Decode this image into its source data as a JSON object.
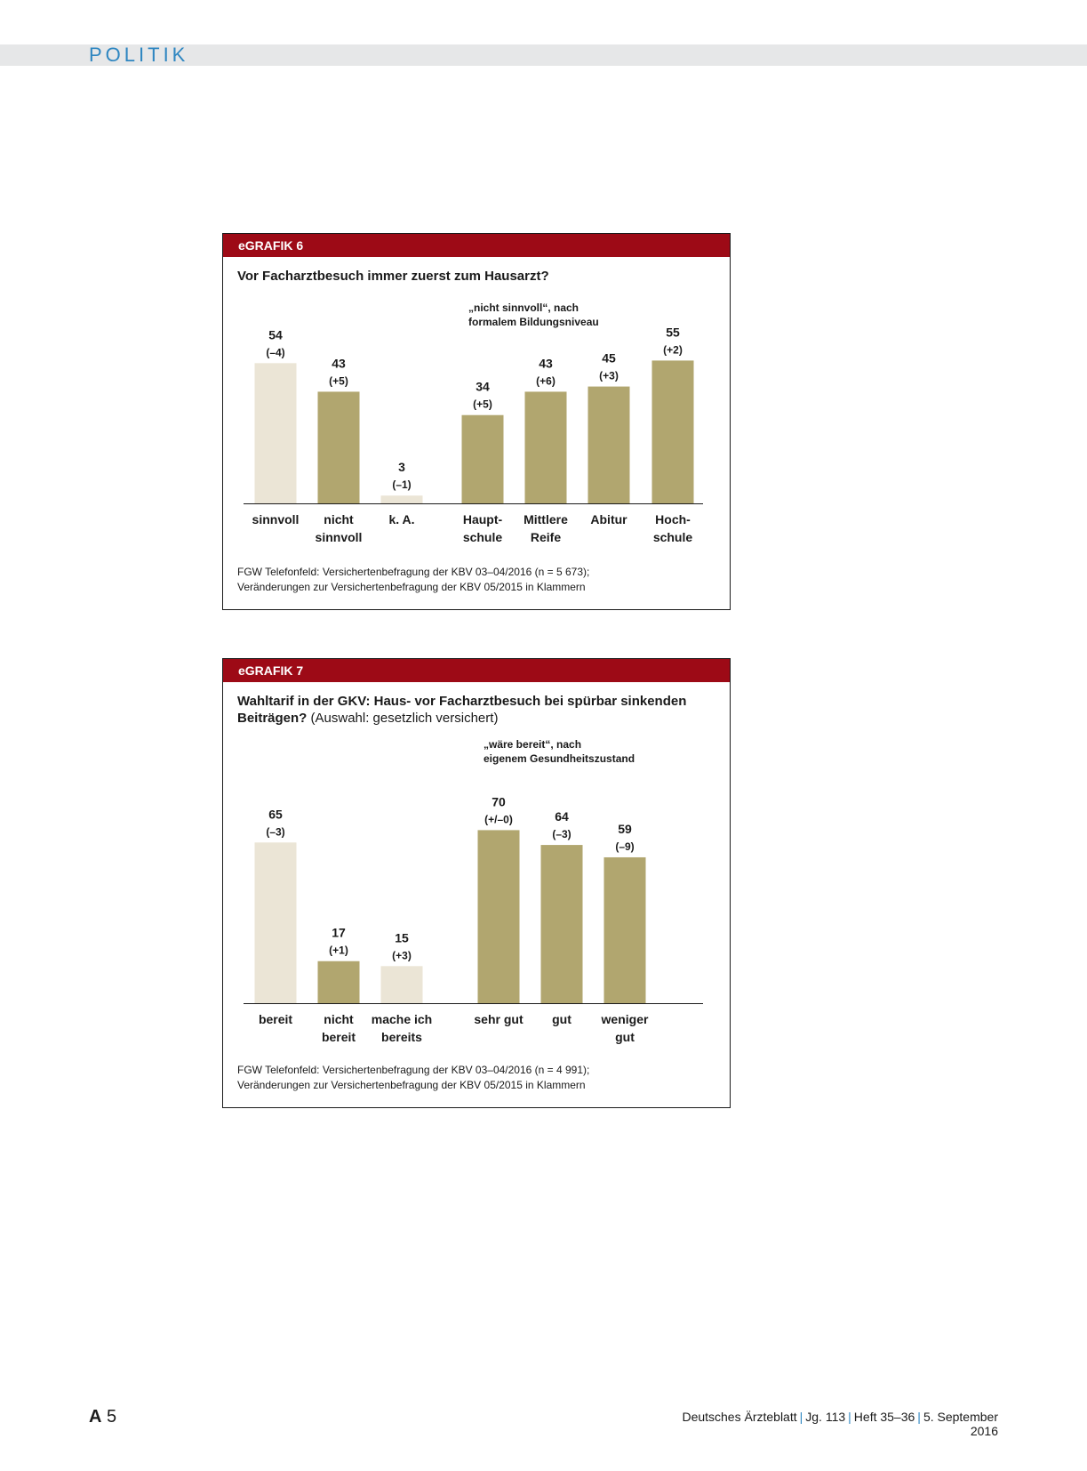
{
  "header": {
    "section": "POLITIK"
  },
  "figures": [
    {
      "label": "eGRAFIK 6",
      "title_bold": "Vor Facharztbesuch immer zuerst zum Hausarzt?",
      "title_normal": "",
      "group_note": [
        "„nicht sinnvoll“, nach",
        "formalem Bildungsniveau"
      ],
      "footnote": [
        "FGW Telefonfeld: Versichertenbefragung der KBV 03–04/2016 (n = 5 673);",
        "Veränderungen zur Versichertenbefragung der KBV 05/2015 in Klammern"
      ]
    },
    {
      "label": "eGRAFIK 7",
      "title_bold": "Wahltarif in der GKV: Haus- vor Facharztbesuch bei spürbar sinkenden Beiträgen?",
      "title_normal": " (Auswahl: gesetzlich versichert)",
      "group_note": [
        "„wäre bereit“, nach",
        "eigenem Gesundheitszustand"
      ],
      "footnote": [
        "FGW Telefonfeld: Versichertenbefragung der KBV 03–04/2016 (n = 4 991);",
        "Veränderungen zur Versichertenbefragung der KBV 05/2015 in Klammern"
      ]
    }
  ],
  "chart_data": [
    {
      "type": "bar",
      "title": "Vor Facharztbesuch immer zuerst zum Hausarzt?",
      "categories": [
        [
          "sinnvoll"
        ],
        [
          "nicht",
          "sinnvoll"
        ],
        [
          "k. A."
        ],
        [
          "Haupt-",
          "schule"
        ],
        [
          "Mittlere",
          "Reife"
        ],
        [
          "Abitur"
        ],
        [
          "Hoch-",
          "schule"
        ]
      ],
      "values": [
        54,
        43,
        3,
        34,
        43,
        45,
        55
      ],
      "changes": [
        "(–4)",
        "(+5)",
        "(–1)",
        "(+5)",
        "(+6)",
        "(+3)",
        "(+2)"
      ],
      "colors": [
        "#ebe5d6",
        "#b1a66f",
        "#ebe5d6",
        "#b1a66f",
        "#b1a66f",
        "#b1a66f",
        "#b1a66f"
      ],
      "xlabel": "",
      "ylabel": "",
      "ylim": [
        0,
        60
      ],
      "grid": false
    },
    {
      "type": "bar",
      "title": "Wahltarif in der GKV: Haus- vor Facharztbesuch bei spürbar sinkenden Beiträgen? (Auswahl: gesetzlich versichert)",
      "categories": [
        [
          "bereit"
        ],
        [
          "nicht",
          "bereit"
        ],
        [
          "mache ich",
          "bereits"
        ],
        [
          "sehr gut"
        ],
        [
          "gut"
        ],
        [
          "weniger",
          "gut"
        ]
      ],
      "values": [
        65,
        17,
        15,
        70,
        64,
        59
      ],
      "changes": [
        "(–3)",
        "(+1)",
        "(+3)",
        "(+/–0)",
        "(–3)",
        "(–9)"
      ],
      "colors": [
        "#ebe5d6",
        "#b1a66f",
        "#ebe5d6",
        "#b1a66f",
        "#b1a66f",
        "#b1a66f"
      ],
      "xlabel": "",
      "ylabel": "",
      "ylim": [
        0,
        70
      ],
      "grid": false
    }
  ],
  "footer": {
    "page_prefix": "A",
    "page_number": "5",
    "journal": "Deutsches Ärzteblatt",
    "volume": "Jg. 113",
    "issue": "Heft 35–36",
    "date": "5. September 2016"
  }
}
